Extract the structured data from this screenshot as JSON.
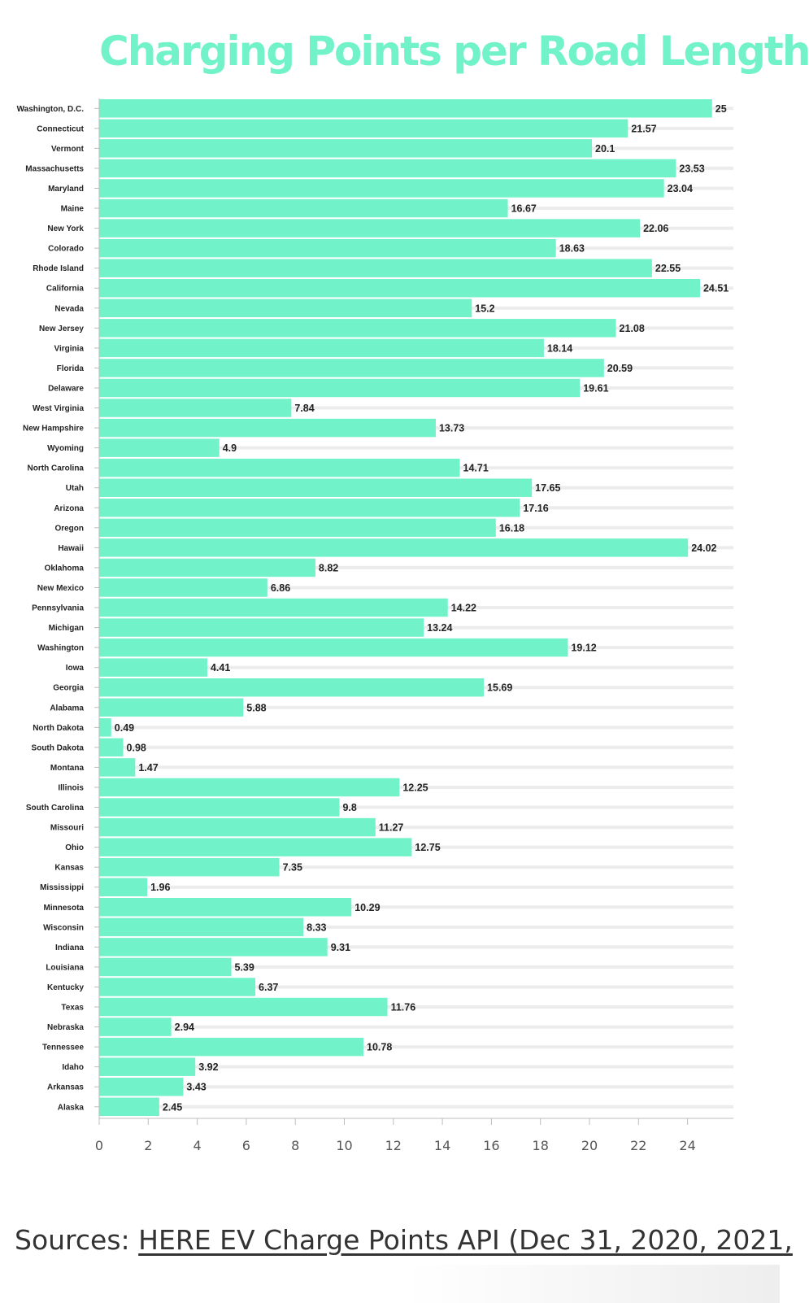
{
  "colors": {
    "bar": "#72f2c8",
    "title": "#72f2c8",
    "grid": "#ececec",
    "axis": "#bdbdbd",
    "text": "#222222"
  },
  "chart_data": {
    "type": "bar",
    "orientation": "horizontal",
    "title": "Charging Points per Road Length",
    "xlabel": "",
    "ylabel": "",
    "xlim": [
      0,
      26
    ],
    "xticks": [
      0,
      2,
      4,
      6,
      8,
      10,
      12,
      14,
      16,
      18,
      20,
      22,
      24
    ],
    "grid": true,
    "data_labels": true,
    "categories": [
      "Washington, D.C.",
      "Connecticut",
      "Vermont",
      "Massachusetts",
      "Maryland",
      "Maine",
      "New York",
      "Colorado",
      "Rhode Island",
      "California",
      "Nevada",
      "New Jersey",
      "Virginia",
      "Florida",
      "Delaware",
      "West Virginia",
      "New Hampshire",
      "Wyoming",
      "North Carolina",
      "Utah",
      "Arizona",
      "Oregon",
      "Hawaii",
      "Oklahoma",
      "New Mexico",
      "Pennsylvania",
      "Michigan",
      "Washington",
      "Iowa",
      "Georgia",
      "Alabama",
      "North Dakota",
      "South Dakota",
      "Montana",
      "Illinois",
      "South Carolina",
      "Missouri",
      "Ohio",
      "Kansas",
      "Mississippi",
      "Minnesota",
      "Wisconsin",
      "Indiana",
      "Louisiana",
      "Kentucky",
      "Texas",
      "Nebraska",
      "Tennessee",
      "Idaho",
      "Arkansas",
      "Alaska"
    ],
    "values": [
      25,
      21.57,
      20.1,
      23.53,
      23.04,
      16.67,
      22.06,
      18.63,
      22.55,
      24.51,
      15.2,
      21.08,
      18.14,
      20.59,
      19.61,
      7.84,
      13.73,
      4.9,
      14.71,
      17.65,
      17.16,
      16.18,
      24.02,
      8.82,
      6.86,
      14.22,
      13.24,
      19.12,
      4.41,
      15.69,
      5.88,
      0.49,
      0.98,
      1.47,
      12.25,
      9.8,
      11.27,
      12.75,
      7.35,
      1.96,
      10.29,
      8.33,
      9.31,
      5.39,
      6.37,
      11.76,
      2.94,
      10.78,
      3.92,
      3.43,
      2.45
    ]
  },
  "sources": {
    "prefix": "Sources: ",
    "link_text": "HERE EV Charge Points API (Dec 31, 2020, 2021,"
  }
}
